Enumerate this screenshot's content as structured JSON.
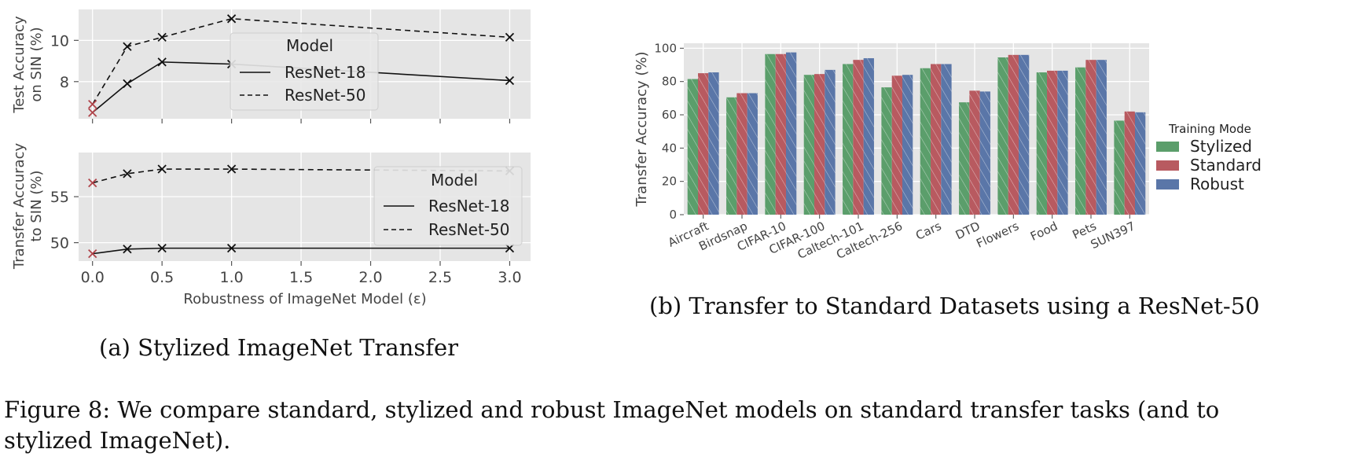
{
  "chart_data": [
    {
      "type": "line",
      "panel": "a-top",
      "ylabel_lines": [
        "Test Accuracy",
        "on SIN (%)"
      ],
      "x": [
        0.0,
        0.25,
        0.5,
        1.0,
        3.0
      ],
      "xlim": [
        -0.1,
        3.15
      ],
      "ylim": [
        6.2,
        11.5
      ],
      "yticks": [
        8,
        10
      ],
      "grid": true,
      "legend": {
        "title": "Model",
        "placement": "center"
      },
      "series": [
        {
          "name": "ResNet-18",
          "linestyle": "solid",
          "values": [
            6.5,
            7.9,
            8.95,
            8.85,
            8.05
          ]
        },
        {
          "name": "ResNet-50",
          "linestyle": "dashed",
          "values": [
            6.9,
            9.7,
            10.15,
            11.05,
            10.15
          ]
        }
      ]
    },
    {
      "type": "line",
      "panel": "a-bottom",
      "ylabel_lines": [
        "Transfer Accuracy",
        "to SIN (%)"
      ],
      "xlabel": "Robustness of ImageNet Model (ε)",
      "x": [
        0.0,
        0.25,
        0.5,
        1.0,
        3.0
      ],
      "xticks": [
        "0.0",
        "0.5",
        "1.0",
        "1.5",
        "2.0",
        "2.5",
        "3.0"
      ],
      "xlim": [
        -0.1,
        3.15
      ],
      "ylim": [
        48,
        59.8
      ],
      "yticks": [
        50,
        55
      ],
      "grid": true,
      "legend": {
        "title": "Model",
        "placement": "center-right"
      },
      "series": [
        {
          "name": "ResNet-18",
          "linestyle": "solid",
          "values": [
            48.8,
            49.3,
            49.4,
            49.4,
            49.4
          ]
        },
        {
          "name": "ResNet-50",
          "linestyle": "dashed",
          "values": [
            56.5,
            57.5,
            58.0,
            58.0,
            57.8
          ]
        }
      ]
    },
    {
      "type": "bar",
      "panel": "b",
      "ylabel": "Transfer Accuracy (%)",
      "categories": [
        "Aircraft",
        "Birdsnap",
        "CIFAR-10",
        "CIFAR-100",
        "Caltech-101",
        "Caltech-256",
        "Cars",
        "DTD",
        "Flowers",
        "Food",
        "Pets",
        "SUN397"
      ],
      "ylim": [
        0,
        103
      ],
      "yticks": [
        0,
        20,
        40,
        60,
        80,
        100
      ],
      "grid": true,
      "legend": {
        "title": "Training Mode",
        "placement": "right"
      },
      "series": [
        {
          "name": "Stylized",
          "color": "#5b9e6b",
          "values": [
            81.5,
            70.5,
            96.5,
            84,
            90.5,
            76.5,
            88,
            67.5,
            94.5,
            85.5,
            88.5,
            56.5
          ]
        },
        {
          "name": "Standard",
          "color": "#b85a60",
          "values": [
            85,
            73,
            96.5,
            84.5,
            93,
            83.5,
            90.5,
            74.5,
            96,
            86.5,
            93,
            62
          ]
        },
        {
          "name": "Robust",
          "color": "#5a76a8",
          "values": [
            85.5,
            73,
            97.5,
            87,
            94,
            84,
            90.5,
            74,
            96,
            86.5,
            93,
            61.5
          ]
        }
      ]
    }
  ],
  "captions": {
    "a": "(a) Stylized ImageNet Transfer",
    "b": "(b) Transfer to Standard Datasets using a ResNet-50",
    "figure_line1": "Figure 8: We compare standard, stylized and robust ImageNet models on standard transfer tasks (and to",
    "figure_line2": "stylized ImageNet)."
  }
}
